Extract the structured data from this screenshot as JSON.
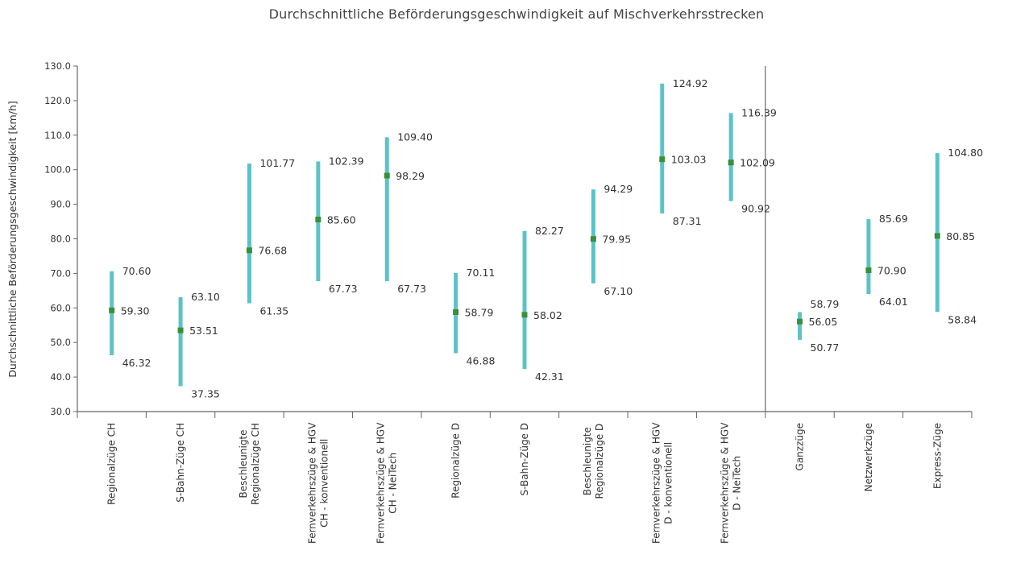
{
  "chart_data": {
    "type": "range",
    "title": "Durchschnittliche Beförderungsgeschwindigkeit  auf Mischverkehrsstrecken",
    "ylabel": "Durchschnittliche Beförderungsgeschwindigkeit [km/h]",
    "xlabel": "",
    "ylim": [
      30,
      130
    ],
    "yticks": [
      "30.0",
      "40.0",
      "50.0",
      "60.0",
      "70.0",
      "80.0",
      "90.0",
      "100.0",
      "110.0",
      "120.0",
      "130.0"
    ],
    "grid": "vertical separators",
    "colors": {
      "range": "#5bc3c8",
      "mean": "#3a8f3a",
      "axis": "#666666"
    },
    "groups": [
      {
        "categories": [
          {
            "label": [
              "Regionalzüge CH"
            ],
            "min": 46.32,
            "mean": 59.3,
            "max": 70.6,
            "min_label": "46.32",
            "mean_label": "59.30",
            "max_label": "70.60"
          },
          {
            "label": [
              "S-Bahn-Züge CH"
            ],
            "min": 37.35,
            "mean": 53.51,
            "max": 63.1,
            "min_label": "37.35",
            "mean_label": "53.51",
            "max_label": "63.10"
          },
          {
            "label": [
              "Beschleunigte",
              "Regionalzüge CH"
            ],
            "min": 61.35,
            "mean": 76.68,
            "max": 101.77,
            "min_label": "61.35",
            "mean_label": "76.68",
            "max_label": "101.77"
          },
          {
            "label": [
              "Fernverkehrszüge & HGV",
              "CH - konventionell"
            ],
            "min": 67.73,
            "mean": 85.6,
            "max": 102.39,
            "min_label": "67.73",
            "mean_label": "85.60",
            "max_label": "102.39"
          },
          {
            "label": [
              "Fernverkehrszüge & HGV",
              "CH - NeiTech"
            ],
            "min": 67.73,
            "mean": 98.29,
            "max": 109.4,
            "min_label": "67.73",
            "mean_label": "98.29",
            "max_label": "109.40"
          },
          {
            "label": [
              "Regionalzüge D"
            ],
            "min": 46.88,
            "mean": 58.79,
            "max": 70.11,
            "min_label": "46.88",
            "mean_label": "58.79",
            "max_label": "70.11"
          },
          {
            "label": [
              "S-Bahn-Züge D"
            ],
            "min": 42.31,
            "mean": 58.02,
            "max": 82.27,
            "min_label": "42.31",
            "mean_label": "58.02",
            "max_label": "82.27"
          },
          {
            "label": [
              "Beschleunigte",
              "Regionalzüge D"
            ],
            "min": 67.1,
            "mean": 79.95,
            "max": 94.29,
            "min_label": "67.10",
            "mean_label": "79.95",
            "max_label": "94.29"
          },
          {
            "label": [
              "Fernverkehrszüge & HGV",
              "D - konventionell"
            ],
            "min": 87.31,
            "mean": 103.03,
            "max": 124.92,
            "min_label": "87.31",
            "mean_label": "103.03",
            "max_label": "124.92"
          },
          {
            "label": [
              "Fernverkehrszüge & HGV",
              "D - NeiTech"
            ],
            "min": 90.92,
            "mean": 102.09,
            "max": 116.39,
            "min_label": "90.92",
            "mean_label": "102.09",
            "max_label": "116.39"
          }
        ]
      },
      {
        "categories": [
          {
            "label": [
              "Ganzzüge"
            ],
            "min": 50.77,
            "mean": 56.05,
            "max": 58.79,
            "min_label": "50.77",
            "mean_label": "56.05",
            "max_label": "58.79"
          },
          {
            "label": [
              "Netzwerkzüge"
            ],
            "min": 64.01,
            "mean": 70.9,
            "max": 85.69,
            "min_label": "64.01",
            "mean_label": "70.90",
            "max_label": "85.69"
          },
          {
            "label": [
              "Express-Züge"
            ],
            "min": 58.84,
            "mean": 80.85,
            "max": 104.8,
            "min_label": "58.84",
            "mean_label": "80.85",
            "max_label": "104.80"
          }
        ]
      }
    ]
  }
}
